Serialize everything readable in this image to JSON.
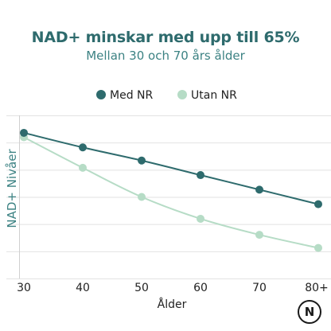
{
  "chart_data": {
    "type": "line",
    "title": "NAD+ minskar med upp till 65%",
    "subtitle": "Mellan 30 och 70 års ålder",
    "xlabel": "Ålder",
    "ylabel": "NAD+ Nivåer",
    "categories": [
      "30",
      "40",
      "50",
      "60",
      "70",
      "80+"
    ],
    "series": [
      {
        "name": "Med NR",
        "values": [
          100,
          90,
          81,
          71,
          61,
          51
        ],
        "color": "#2e6b6d"
      },
      {
        "name": "Utan NR",
        "values": [
          97,
          76,
          56,
          41,
          30,
          21
        ],
        "color": "#b6dcc6"
      }
    ],
    "ylim": [
      0,
      112
    ],
    "grid": true,
    "y_tick_labels": false,
    "legend": "top-center"
  },
  "logo": {
    "letter": "N"
  }
}
